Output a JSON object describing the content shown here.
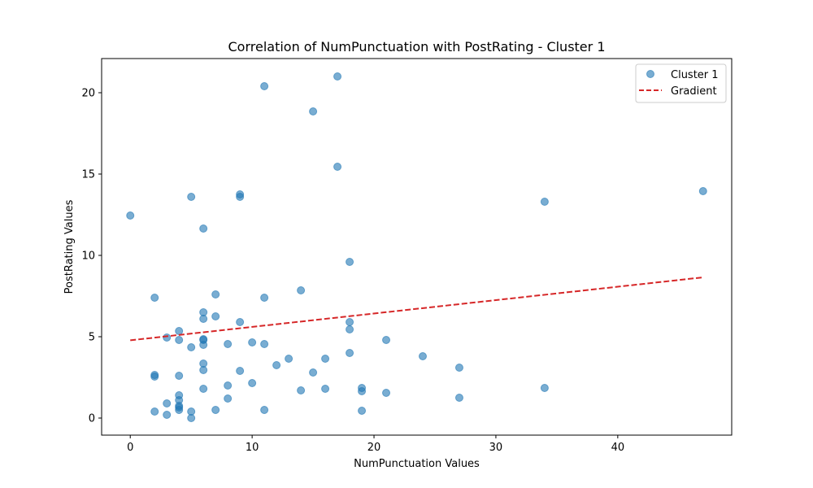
{
  "chart_data": {
    "type": "scatter",
    "title": "Correlation of NumPunctuation with PostRating - Cluster 1",
    "xlabel": "NumPunctuation Values",
    "ylabel": "PostRating Values",
    "xlim": [
      -2.35,
      49.35
    ],
    "ylim": [
      -1.05,
      22.1
    ],
    "xticks": [
      0,
      10,
      20,
      30,
      40
    ],
    "yticks": [
      0,
      5,
      10,
      15,
      20
    ],
    "grid": false,
    "legend_position": "top-right",
    "series": [
      {
        "name": "Cluster 1",
        "kind": "scatter",
        "color": "#1f77b4",
        "x": [
          0,
          2,
          2,
          2,
          2,
          3,
          3,
          3,
          4,
          4,
          4,
          4,
          4,
          4,
          4,
          4,
          5,
          5,
          5,
          5,
          6,
          6,
          6,
          6,
          6,
          6,
          6,
          6,
          6,
          7,
          7,
          7,
          8,
          8,
          8,
          9,
          9,
          9,
          9,
          10,
          10,
          11,
          11,
          11,
          11,
          12,
          13,
          14,
          14,
          15,
          15,
          16,
          16,
          17,
          17,
          18,
          18,
          18,
          18,
          19,
          19,
          19,
          21,
          21,
          24,
          27,
          27,
          34,
          34,
          47
        ],
        "y": [
          12.45,
          7.4,
          2.65,
          2.55,
          0.4,
          4.95,
          0.9,
          0.2,
          5.35,
          4.8,
          2.6,
          1.4,
          1.1,
          0.75,
          0.65,
          0.5,
          13.6,
          4.35,
          0.4,
          0.0,
          11.65,
          6.5,
          6.1,
          4.85,
          4.5,
          3.35,
          2.95,
          1.8,
          4.8,
          7.6,
          6.25,
          0.5,
          4.55,
          2.0,
          1.2,
          13.75,
          13.6,
          5.9,
          2.9,
          4.65,
          2.15,
          20.4,
          7.4,
          4.55,
          0.5,
          3.25,
          3.65,
          7.85,
          1.7,
          18.85,
          2.8,
          3.65,
          1.8,
          21.0,
          15.45,
          9.6,
          5.9,
          5.45,
          4.0,
          1.85,
          1.65,
          0.45,
          4.8,
          1.55,
          3.8,
          3.1,
          1.25,
          13.3,
          1.85,
          13.95
        ]
      },
      {
        "name": "Gradient",
        "kind": "line",
        "style": "dashed",
        "color": "#d62728",
        "x": [
          0,
          47
        ],
        "y": [
          4.78,
          8.65
        ]
      }
    ]
  }
}
